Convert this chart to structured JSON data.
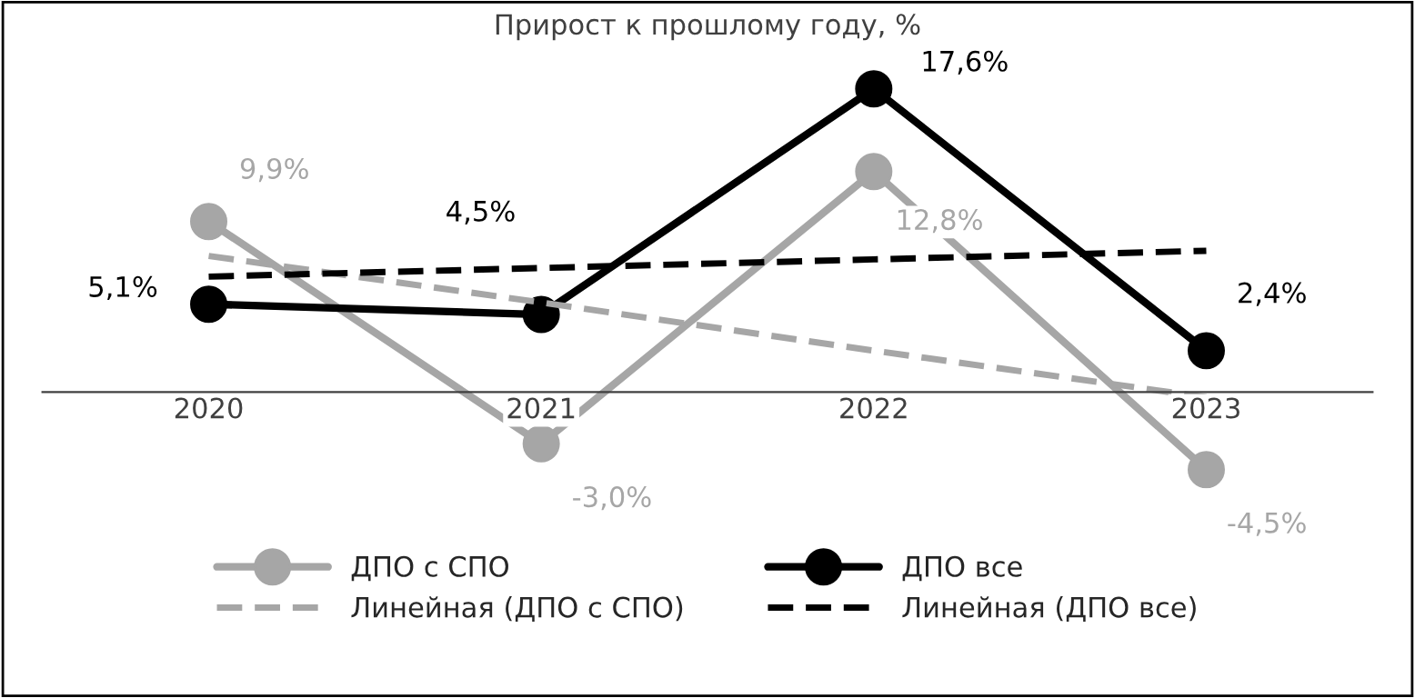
{
  "chart_data": {
    "type": "line",
    "title": "Прирост к прошлому году, %",
    "categories": [
      "2020",
      "2021",
      "2022",
      "2023"
    ],
    "series": [
      {
        "name": "ДПО с СПО",
        "color": "#a6a6a6",
        "values": [
          9.9,
          -3.0,
          12.8,
          -4.5
        ],
        "value_labels": [
          "9,9%",
          "-3,0%",
          "12,8%",
          "-4,5%"
        ],
        "marker": "circle",
        "line_style": "solid"
      },
      {
        "name": "ДПО все",
        "color": "#000000",
        "values": [
          5.1,
          4.5,
          17.6,
          2.4
        ],
        "value_labels": [
          "5,1%",
          "4,5%",
          "17,6%",
          "2,4%"
        ],
        "marker": "circle",
        "line_style": "solid"
      },
      {
        "name": "Линейная (ДПО с СПО)",
        "color": "#a6a6a6",
        "values": [
          7.9,
          5.2,
          2.4,
          -0.3
        ],
        "marker": "none",
        "line_style": "dashed"
      },
      {
        "name": "Линейная (ДПО все)",
        "color": "#000000",
        "values": [
          6.7,
          7.2,
          7.7,
          8.2
        ],
        "marker": "none",
        "line_style": "dashed"
      }
    ],
    "tick_labels": "x",
    "grid": false,
    "legend": "bottom"
  }
}
